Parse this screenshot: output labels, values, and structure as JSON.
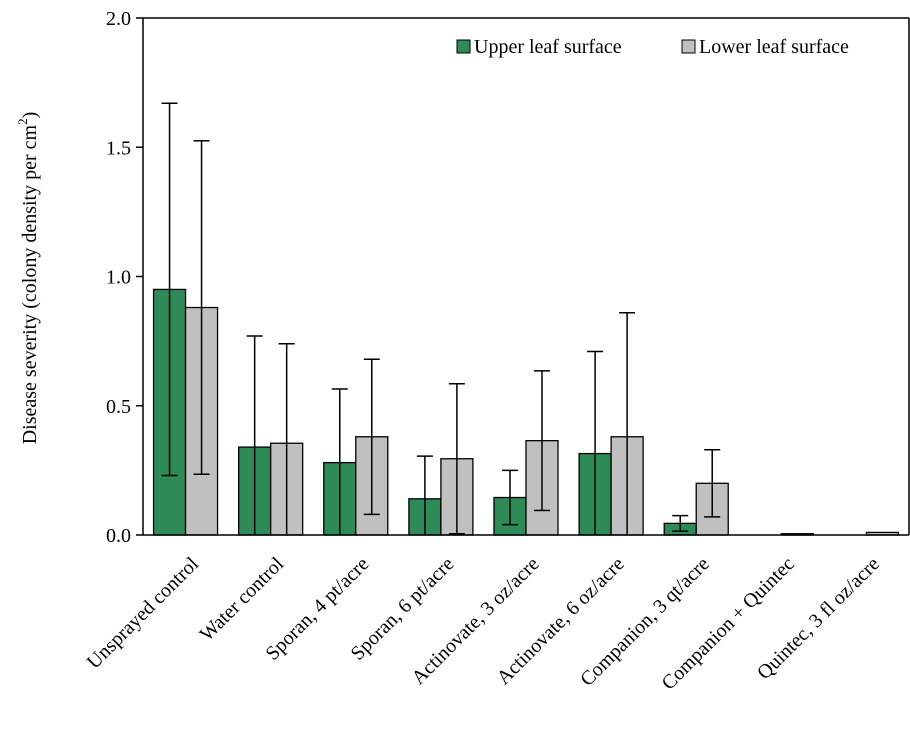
{
  "chart_data": {
    "type": "bar",
    "title": "",
    "xlabel": "",
    "ylabel": "Disease severity (colony density per cm",
    "ylabel_superscript": "2",
    "ylabel_close": ")",
    "ylim": [
      0,
      2.0
    ],
    "yticks": [
      "0.0",
      "0.5",
      "1.0",
      "1.5",
      "2.0"
    ],
    "grid": false,
    "legend_position": "top-right",
    "categories": [
      "Unsprayed control",
      "Water control",
      "Sporan, 4 pt/acre",
      "Sporan, 6 pt/acre",
      "Actinovate, 3 oz/acre",
      "Actinovate, 6 oz/acre",
      "Companion, 3 qt/acre",
      "Companion + Quintec",
      "Quintec, 3 fl oz/acre"
    ],
    "series": [
      {
        "name": "Upper leaf surface",
        "color": "#2e8b57",
        "values": [
          0.95,
          0.34,
          0.28,
          0.14,
          0.145,
          0.315,
          0.045,
          0.0,
          0.0
        ],
        "error": [
          0.72,
          0.43,
          0.285,
          0.165,
          0.105,
          0.395,
          0.03,
          0.0,
          0.0
        ]
      },
      {
        "name": "Lower leaf surface",
        "color": "#c0c0c0",
        "values": [
          0.88,
          0.355,
          0.38,
          0.295,
          0.365,
          0.38,
          0.2,
          0.005,
          0.01
        ],
        "error": [
          0.645,
          0.385,
          0.3,
          0.29,
          0.27,
          0.48,
          0.13,
          0.0,
          0.0
        ]
      }
    ]
  }
}
